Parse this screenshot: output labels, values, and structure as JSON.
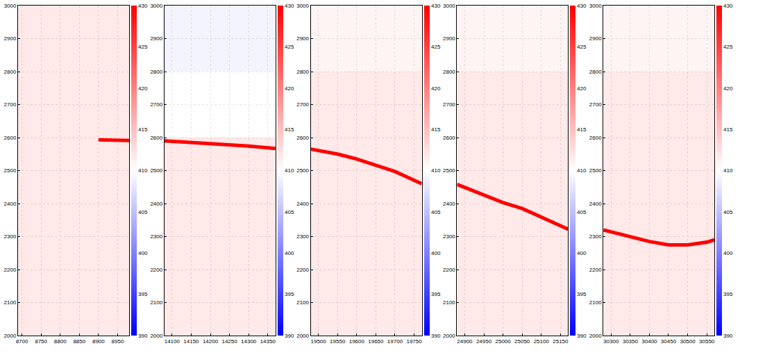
{
  "chart_data": [
    {
      "type": "heatmap",
      "xlim": [
        8690,
        8980
      ],
      "xticks": [
        8700,
        8750,
        8800,
        8850,
        8900,
        8950
      ],
      "ylim": [
        2000,
        3000
      ],
      "yticks": [
        2000,
        2100,
        2200,
        2300,
        2400,
        2500,
        2600,
        2700,
        2800,
        2900,
        3000
      ],
      "grid": true,
      "cell_x": [
        8690,
        8980
      ],
      "cell_y": [
        2000,
        2200,
        2400,
        2600,
        2800,
        3000
      ],
      "cells": [
        [
          412
        ],
        [
          412
        ],
        [
          412
        ],
        [
          412
        ],
        [
          412
        ]
      ],
      "color_range": [
        390,
        430
      ],
      "color_ticks": [
        390,
        395,
        400,
        405,
        410,
        415,
        420,
        425,
        430
      ],
      "series": [
        {
          "type": "line",
          "color": "#ff0000",
          "x": [
            8900,
            8940,
            8980
          ],
          "values": [
            2593,
            2592,
            2591
          ]
        }
      ]
    },
    {
      "type": "heatmap",
      "xlim": [
        14080,
        14370
      ],
      "xticks": [
        14100,
        14150,
        14200,
        14250,
        14300,
        14350
      ],
      "ylim": [
        2000,
        3000
      ],
      "yticks": [
        2000,
        2100,
        2200,
        2300,
        2400,
        2500,
        2600,
        2700,
        2800,
        2900,
        3000
      ],
      "grid": true,
      "cell_x": [
        14080,
        14370
      ],
      "cell_y": [
        2000,
        2200,
        2400,
        2600,
        2800,
        3000
      ],
      "cells": [
        [
          412
        ],
        [
          412
        ],
        [
          412
        ],
        [
          410
        ],
        [
          409
        ]
      ],
      "color_range": [
        390,
        430
      ],
      "color_ticks": [
        390,
        395,
        400,
        405,
        410,
        415,
        420,
        425,
        430
      ],
      "series": [
        {
          "type": "line",
          "color": "#ff0000",
          "x": [
            14080,
            14150,
            14200,
            14250,
            14300,
            14370
          ],
          "values": [
            2590,
            2585,
            2582,
            2578,
            2574,
            2567
          ]
        }
      ]
    },
    {
      "type": "heatmap",
      "xlim": [
        19480,
        19770
      ],
      "xticks": [
        19500,
        19550,
        19600,
        19650,
        19700,
        19750
      ],
      "ylim": [
        2000,
        3000
      ],
      "yticks": [
        2000,
        2100,
        2200,
        2300,
        2400,
        2500,
        2600,
        2700,
        2800,
        2900,
        3000
      ],
      "grid": true,
      "cell_x": [
        19480,
        19770
      ],
      "cell_y": [
        2000,
        2200,
        2400,
        2600,
        2800,
        3000
      ],
      "cells": [
        [
          412
        ],
        [
          412
        ],
        [
          412
        ],
        [
          412
        ],
        [
          411
        ]
      ],
      "color_range": [
        390,
        430
      ],
      "color_ticks": [
        390,
        395,
        400,
        405,
        410,
        415,
        420,
        425,
        430
      ],
      "series": [
        {
          "type": "line",
          "color": "#ff0000",
          "x": [
            19480,
            19550,
            19600,
            19650,
            19700,
            19770
          ],
          "values": [
            2565,
            2550,
            2535,
            2515,
            2497,
            2460
          ]
        }
      ]
    },
    {
      "type": "heatmap",
      "xlim": [
        24880,
        25170
      ],
      "xticks": [
        24900,
        24950,
        25000,
        25050,
        25100,
        25150
      ],
      "ylim": [
        2000,
        3000
      ],
      "yticks": [
        2000,
        2100,
        2200,
        2300,
        2400,
        2500,
        2600,
        2700,
        2800,
        2900,
        3000
      ],
      "grid": true,
      "cell_x": [
        24880,
        25170
      ],
      "cell_y": [
        2000,
        2200,
        2400,
        2600,
        2800,
        3000
      ],
      "cells": [
        [
          412
        ],
        [
          412
        ],
        [
          412
        ],
        [
          412
        ],
        [
          411
        ]
      ],
      "color_range": [
        390,
        430
      ],
      "color_ticks": [
        390,
        395,
        400,
        405,
        410,
        415,
        420,
        425,
        430
      ],
      "series": [
        {
          "type": "line",
          "color": "#ff0000",
          "x": [
            24880,
            24950,
            25000,
            25050,
            25100,
            25170
          ],
          "values": [
            2458,
            2425,
            2403,
            2385,
            2358,
            2322
          ]
        }
      ]
    },
    {
      "type": "heatmap",
      "xlim": [
        30280,
        30570
      ],
      "xticks": [
        30300,
        30350,
        30400,
        30450,
        30500,
        30550
      ],
      "ylim": [
        2000,
        3000
      ],
      "yticks": [
        2000,
        2100,
        2200,
        2300,
        2400,
        2500,
        2600,
        2700,
        2800,
        2900,
        3000
      ],
      "grid": true,
      "cell_x": [
        30280,
        30570
      ],
      "cell_y": [
        2000,
        2200,
        2400,
        2600,
        2800,
        3000
      ],
      "cells": [
        [
          412
        ],
        [
          412
        ],
        [
          412
        ],
        [
          412
        ],
        [
          411
        ]
      ],
      "color_range": [
        390,
        430
      ],
      "color_ticks": [
        390,
        395,
        400,
        405,
        410,
        415,
        420,
        425,
        430
      ],
      "series": [
        {
          "type": "line",
          "color": "#ff0000",
          "x": [
            30280,
            30350,
            30400,
            30450,
            30500,
            30550,
            30570
          ],
          "values": [
            2320,
            2300,
            2285,
            2275,
            2275,
            2283,
            2290
          ]
        }
      ]
    }
  ]
}
